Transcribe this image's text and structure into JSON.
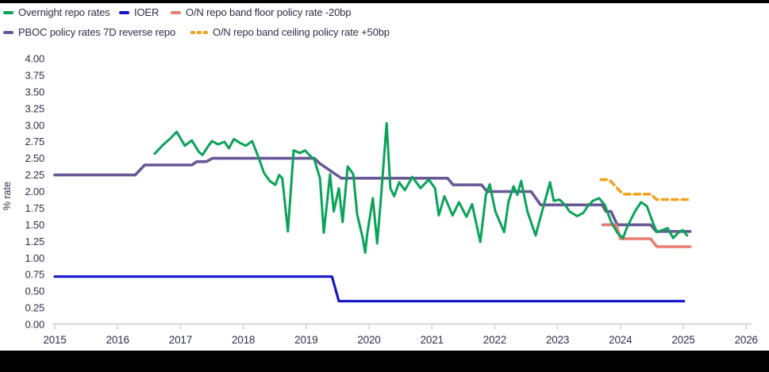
{
  "colors": {
    "text": "#2e2e49",
    "axis": "#d6d6d6",
    "background": "#ffffff",
    "frame_bars": "#000000",
    "overnight_repo": "#09a359",
    "ioer": "#1515cb",
    "floor_band": "#e97b70",
    "pboc_policy": "#6a5796",
    "ceiling_band": "#f3a21f"
  },
  "legend": {
    "rows": [
      [
        {
          "label": "Overnight repo rates",
          "color": "#09a359",
          "style": "solid"
        },
        {
          "label": "IOER",
          "color": "#1515cb",
          "style": "solid"
        },
        {
          "label": "O/N repo band floor policy rate -20bp",
          "color": "#e97b70",
          "style": "solid"
        }
      ],
      [
        {
          "label": "PBOC policy rates 7D reverse repo",
          "color": "#6a5796",
          "style": "solid"
        },
        {
          "label": "O/N repo band ceiling policy rate +50bp",
          "color": "#f3a21f",
          "style": "dashed"
        }
      ]
    ]
  },
  "chart_data": {
    "type": "line",
    "title": "",
    "xlabel": "",
    "ylabel": "% rate",
    "xlim": [
      2015,
      2026
    ],
    "ylim": [
      0,
      4
    ],
    "grid": false,
    "legend_position": "top-left",
    "y_ticks": [
      "0.00",
      "0.25",
      "0.50",
      "0.75",
      "1.00",
      "1.25",
      "1.50",
      "1.75",
      "2.00",
      "2.25",
      "2.50",
      "2.75",
      "3.00",
      "3.25",
      "3.50",
      "3.75",
      "4.00"
    ],
    "x_ticks": [
      "2015",
      "2016",
      "2017",
      "2018",
      "2019",
      "2020",
      "2021",
      "2022",
      "2023",
      "2024",
      "2025",
      "2026"
    ],
    "series": [
      {
        "name": "IOER",
        "color": "#1515cb",
        "dash": false,
        "width": 3.2,
        "points": [
          [
            2015.0,
            0.72
          ],
          [
            2019.41,
            0.72
          ],
          [
            2019.52,
            0.35
          ],
          [
            2025.01,
            0.35
          ]
        ]
      },
      {
        "name": "PBOC policy rates 7D reverse repo",
        "color": "#6a5796",
        "dash": false,
        "width": 3.6,
        "points": [
          [
            2015.0,
            2.25
          ],
          [
            2016.28,
            2.25
          ],
          [
            2016.43,
            2.4
          ],
          [
            2017.18,
            2.4
          ],
          [
            2017.26,
            2.45
          ],
          [
            2017.41,
            2.45
          ],
          [
            2017.51,
            2.5
          ],
          [
            2019.13,
            2.5
          ],
          [
            2019.22,
            2.42
          ],
          [
            2019.56,
            2.2
          ],
          [
            2021.25,
            2.2
          ],
          [
            2021.34,
            2.1
          ],
          [
            2021.79,
            2.1
          ],
          [
            2021.88,
            2.0
          ],
          [
            2022.58,
            2.0
          ],
          [
            2022.73,
            1.8
          ],
          [
            2023.71,
            1.8
          ],
          [
            2023.77,
            1.7
          ],
          [
            2023.85,
            1.7
          ],
          [
            2023.95,
            1.5
          ],
          [
            2024.48,
            1.5
          ],
          [
            2024.57,
            1.4
          ],
          [
            2025.11,
            1.4
          ]
        ]
      },
      {
        "name": "O/N repo band floor policy rate -20bp",
        "color": "#e97b70",
        "dash": false,
        "width": 3.6,
        "points": [
          [
            2023.72,
            1.5
          ],
          [
            2023.93,
            1.5
          ],
          [
            2024.0,
            1.29
          ],
          [
            2024.48,
            1.29
          ],
          [
            2024.58,
            1.17
          ],
          [
            2025.11,
            1.17
          ]
        ]
      },
      {
        "name": "O/N repo band ceiling policy rate +50bp",
        "color": "#f3a21f",
        "dash": true,
        "width": 3.6,
        "points": [
          [
            2023.69,
            2.18
          ],
          [
            2023.82,
            2.18
          ],
          [
            2024.04,
            1.96
          ],
          [
            2024.48,
            1.96
          ],
          [
            2024.58,
            1.88
          ],
          [
            2025.11,
            1.88
          ]
        ]
      },
      {
        "name": "Overnight repo rates",
        "color": "#09a359",
        "dash": false,
        "width": 3,
        "points": [
          [
            2016.59,
            2.57
          ],
          [
            2016.72,
            2.7
          ],
          [
            2016.84,
            2.8
          ],
          [
            2016.94,
            2.9
          ],
          [
            2017.07,
            2.69
          ],
          [
            2017.18,
            2.77
          ],
          [
            2017.29,
            2.6
          ],
          [
            2017.35,
            2.55
          ],
          [
            2017.44,
            2.68
          ],
          [
            2017.5,
            2.76
          ],
          [
            2017.6,
            2.71
          ],
          [
            2017.7,
            2.75
          ],
          [
            2017.77,
            2.65
          ],
          [
            2017.85,
            2.79
          ],
          [
            2017.95,
            2.73
          ],
          [
            2018.04,
            2.69
          ],
          [
            2018.14,
            2.76
          ],
          [
            2018.24,
            2.52
          ],
          [
            2018.33,
            2.28
          ],
          [
            2018.42,
            2.16
          ],
          [
            2018.51,
            2.1
          ],
          [
            2018.57,
            2.25
          ],
          [
            2018.62,
            2.2
          ],
          [
            2018.71,
            1.4
          ],
          [
            2018.8,
            2.62
          ],
          [
            2018.9,
            2.58
          ],
          [
            2018.98,
            2.62
          ],
          [
            2019.05,
            2.55
          ],
          [
            2019.13,
            2.48
          ],
          [
            2019.22,
            2.2
          ],
          [
            2019.28,
            1.38
          ],
          [
            2019.38,
            2.26
          ],
          [
            2019.44,
            1.7
          ],
          [
            2019.52,
            2.05
          ],
          [
            2019.58,
            1.54
          ],
          [
            2019.66,
            2.38
          ],
          [
            2019.75,
            2.26
          ],
          [
            2019.81,
            1.66
          ],
          [
            2019.9,
            1.3
          ],
          [
            2019.94,
            1.08
          ],
          [
            2019.97,
            1.35
          ],
          [
            2020.06,
            1.9
          ],
          [
            2020.13,
            1.22
          ],
          [
            2020.19,
            1.9
          ],
          [
            2020.28,
            3.03
          ],
          [
            2020.34,
            2.05
          ],
          [
            2020.4,
            1.93
          ],
          [
            2020.48,
            2.14
          ],
          [
            2020.57,
            2.02
          ],
          [
            2020.69,
            2.22
          ],
          [
            2020.82,
            2.05
          ],
          [
            2020.95,
            2.18
          ],
          [
            2021.05,
            2.05
          ],
          [
            2021.11,
            1.64
          ],
          [
            2021.2,
            1.93
          ],
          [
            2021.33,
            1.64
          ],
          [
            2021.43,
            1.84
          ],
          [
            2021.55,
            1.62
          ],
          [
            2021.64,
            1.81
          ],
          [
            2021.77,
            1.24
          ],
          [
            2021.86,
            1.95
          ],
          [
            2021.92,
            2.11
          ],
          [
            2022.01,
            1.7
          ],
          [
            2022.15,
            1.39
          ],
          [
            2022.22,
            1.85
          ],
          [
            2022.3,
            2.08
          ],
          [
            2022.36,
            1.95
          ],
          [
            2022.42,
            2.16
          ],
          [
            2022.52,
            1.7
          ],
          [
            2022.65,
            1.34
          ],
          [
            2022.77,
            1.76
          ],
          [
            2022.88,
            2.14
          ],
          [
            2022.94,
            1.86
          ],
          [
            2023.03,
            1.88
          ],
          [
            2023.12,
            1.8
          ],
          [
            2023.19,
            1.7
          ],
          [
            2023.31,
            1.63
          ],
          [
            2023.41,
            1.68
          ],
          [
            2023.48,
            1.78
          ],
          [
            2023.56,
            1.86
          ],
          [
            2023.66,
            1.9
          ],
          [
            2023.75,
            1.8
          ],
          [
            2023.85,
            1.55
          ],
          [
            2023.95,
            1.38
          ],
          [
            2024.04,
            1.3
          ],
          [
            2024.1,
            1.45
          ],
          [
            2024.23,
            1.7
          ],
          [
            2024.33,
            1.84
          ],
          [
            2024.42,
            1.78
          ],
          [
            2024.51,
            1.55
          ],
          [
            2024.58,
            1.39
          ],
          [
            2024.67,
            1.42
          ],
          [
            2024.75,
            1.45
          ],
          [
            2024.84,
            1.3
          ],
          [
            2024.92,
            1.38
          ],
          [
            2024.99,
            1.42
          ],
          [
            2025.06,
            1.34
          ]
        ]
      }
    ]
  }
}
